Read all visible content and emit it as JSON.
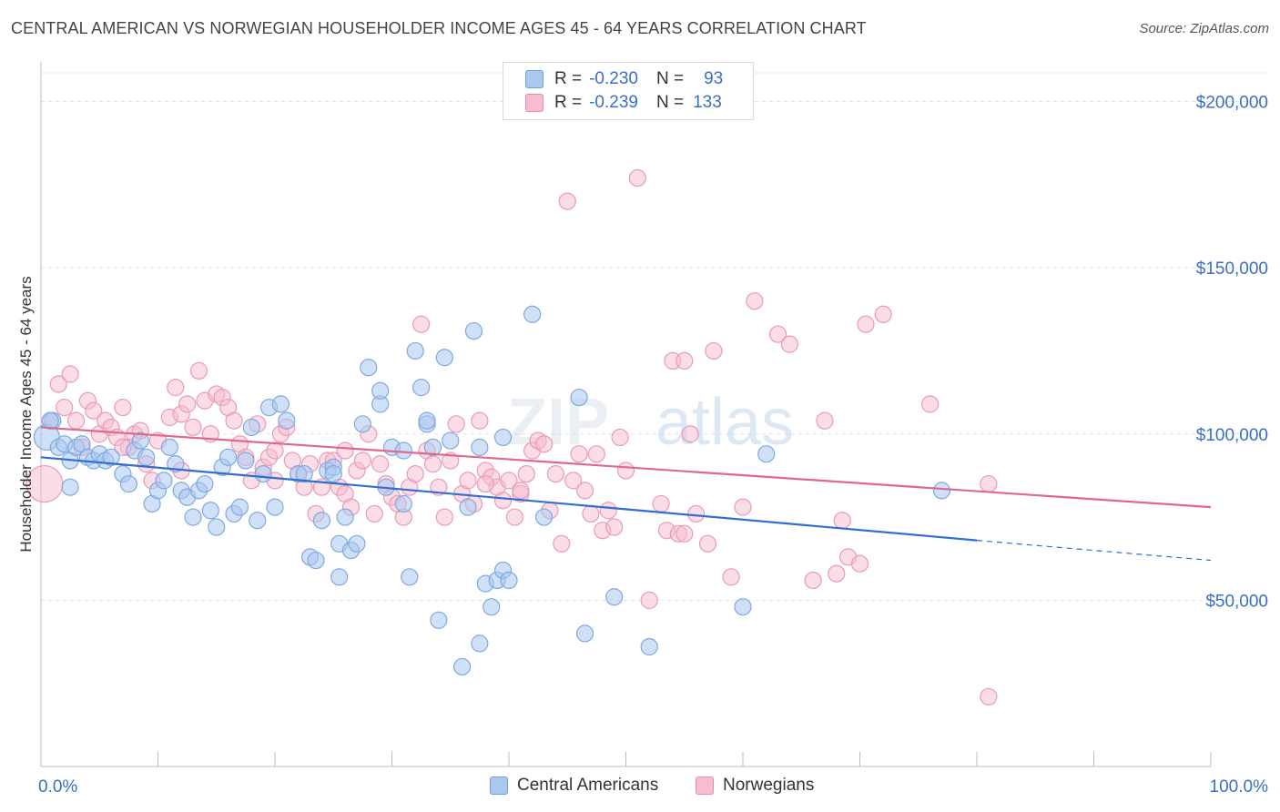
{
  "title": "CENTRAL AMERICAN VS NORWEGIAN HOUSEHOLDER INCOME AGES 45 - 64 YEARS CORRELATION CHART",
  "source": "Source: ZipAtlas.com",
  "watermark": {
    "zip": "ZIP",
    "atlas": "atlas"
  },
  "legend": {
    "rows": [
      {
        "r_label": "R =",
        "r_value": "-0.230",
        "n_label": "N =",
        "n_value": "93",
        "color": "#a9c8f0",
        "border": "#6f9fdc"
      },
      {
        "r_label": "R =",
        "r_value": "-0.239",
        "n_label": "N =",
        "n_value": "133",
        "color": "#f7bcd0",
        "border": "#e88aab"
      }
    ]
  },
  "bottom_legend": [
    {
      "label": "Central Americans",
      "color": "#a9c8f0",
      "border": "#6f9fdc"
    },
    {
      "label": "Norwegians",
      "color": "#f7bcd0",
      "border": "#e88aab"
    }
  ],
  "colors": {
    "blue_line": "#2f6fd0",
    "pink_line": "#e0678f",
    "axis_text": "#3a6fc4",
    "grid": "#dde3ec"
  },
  "chart_data": {
    "type": "scatter",
    "title": "CENTRAL AMERICAN VS NORWEGIAN HOUSEHOLDER INCOME AGES 45 - 64 YEARS CORRELATION CHART",
    "xlabel": "",
    "ylabel": "Householder Income Ages 45 - 64 years",
    "xlim": [
      0,
      100
    ],
    "ylim": [
      0,
      210000
    ],
    "x_tick_labels": [
      "0.0%",
      "100.0%"
    ],
    "y_ticks": [
      50000,
      100000,
      150000,
      200000
    ],
    "y_tick_labels": [
      "$50,000",
      "$100,000",
      "$150,000",
      "$200,000"
    ],
    "grid": true,
    "series": [
      {
        "name": "Central Americans",
        "color": "#a9c8f0",
        "trend": {
          "x": [
            0,
            80
          ],
          "y": [
            93000,
            68000
          ],
          "dashed_to": [
            100,
            62000
          ]
        },
        "points": [
          [
            0.5,
            99000
          ],
          [
            1,
            104000
          ],
          [
            1.5,
            96000
          ],
          [
            2,
            97000
          ],
          [
            2.5,
            92000
          ],
          [
            3,
            96000
          ],
          [
            3.5,
            97000
          ],
          [
            4,
            93000
          ],
          [
            4.5,
            92000
          ],
          [
            5,
            94000
          ],
          [
            5.5,
            92000
          ],
          [
            6,
            93000
          ],
          [
            7,
            88000
          ],
          [
            7.5,
            85000
          ],
          [
            8,
            95000
          ],
          [
            8.5,
            98000
          ],
          [
            9,
            93000
          ],
          [
            9.5,
            79000
          ],
          [
            10,
            83000
          ],
          [
            10.5,
            86000
          ],
          [
            11,
            96000
          ],
          [
            11.5,
            91000
          ],
          [
            12,
            83000
          ],
          [
            12.5,
            81000
          ],
          [
            13,
            75000
          ],
          [
            13.5,
            83000
          ],
          [
            14,
            85000
          ],
          [
            14.5,
            77000
          ],
          [
            15,
            72000
          ],
          [
            15.5,
            90000
          ],
          [
            16,
            93000
          ],
          [
            16.5,
            76000
          ],
          [
            17,
            78000
          ],
          [
            17.5,
            92000
          ],
          [
            18,
            102000
          ],
          [
            18.5,
            74000
          ],
          [
            19,
            88000
          ],
          [
            19.5,
            108000
          ],
          [
            20,
            78000
          ],
          [
            20.5,
            109000
          ],
          [
            21,
            104000
          ],
          [
            22,
            88000
          ],
          [
            22.5,
            88000
          ],
          [
            23,
            63000
          ],
          [
            23.5,
            62000
          ],
          [
            24,
            74000
          ],
          [
            24.5,
            89000
          ],
          [
            25,
            90000
          ],
          [
            25,
            88000
          ],
          [
            25.5,
            67000
          ],
          [
            25.5,
            57000
          ],
          [
            26,
            75000
          ],
          [
            26.5,
            65000
          ],
          [
            27,
            67000
          ],
          [
            27.5,
            103000
          ],
          [
            28,
            120000
          ],
          [
            29,
            109000
          ],
          [
            29,
            113000
          ],
          [
            29.5,
            84000
          ],
          [
            30,
            96000
          ],
          [
            31,
            79000
          ],
          [
            31,
            95000
          ],
          [
            31.5,
            57000
          ],
          [
            32,
            125000
          ],
          [
            32.5,
            114000
          ],
          [
            33,
            103000
          ],
          [
            33.5,
            96000
          ],
          [
            34,
            44000
          ],
          [
            34.5,
            123000
          ],
          [
            35,
            98000
          ],
          [
            36,
            30000
          ],
          [
            36.5,
            78000
          ],
          [
            37,
            131000
          ],
          [
            37.5,
            37000
          ],
          [
            37.5,
            96000
          ],
          [
            38,
            55000
          ],
          [
            38.5,
            48000
          ],
          [
            39,
            56000
          ],
          [
            39.5,
            59000
          ],
          [
            40,
            56000
          ],
          [
            39.5,
            99000
          ],
          [
            42,
            136000
          ],
          [
            43,
            75000
          ],
          [
            46,
            111000
          ],
          [
            46.5,
            40000
          ],
          [
            49,
            51000
          ],
          [
            52,
            36000
          ],
          [
            60,
            48000
          ],
          [
            62,
            94000
          ],
          [
            77,
            83000
          ],
          [
            0.8,
            104000
          ],
          [
            2.5,
            84000
          ],
          [
            33,
            104000
          ]
        ]
      },
      {
        "name": "Norwegians",
        "color": "#f7bcd0",
        "trend": {
          "x": [
            0,
            100
          ],
          "y": [
            102000,
            78000
          ]
        },
        "points": [
          [
            0.3,
            85000
          ],
          [
            0.8,
            104000
          ],
          [
            1.5,
            115000
          ],
          [
            2,
            108000
          ],
          [
            2.5,
            118000
          ],
          [
            3,
            104000
          ],
          [
            3.5,
            96000
          ],
          [
            4,
            110000
          ],
          [
            4.5,
            107000
          ],
          [
            5,
            100000
          ],
          [
            5.5,
            104000
          ],
          [
            6,
            102000
          ],
          [
            6.5,
            99000
          ],
          [
            7,
            108000
          ],
          [
            7.5,
            96000
          ],
          [
            8,
            100000
          ],
          [
            8.5,
            101000
          ],
          [
            9,
            91000
          ],
          [
            9.5,
            86000
          ],
          [
            10,
            98000
          ],
          [
            11,
            105000
          ],
          [
            11.5,
            114000
          ],
          [
            12,
            106000
          ],
          [
            12.5,
            109000
          ],
          [
            13,
            102000
          ],
          [
            13.5,
            119000
          ],
          [
            14,
            110000
          ],
          [
            14.5,
            100000
          ],
          [
            15,
            112000
          ],
          [
            15.5,
            111000
          ],
          [
            16,
            108000
          ],
          [
            16.5,
            104000
          ],
          [
            17,
            97000
          ],
          [
            17.5,
            93000
          ],
          [
            18,
            86000
          ],
          [
            18.5,
            103000
          ],
          [
            19,
            90000
          ],
          [
            19.5,
            93000
          ],
          [
            20,
            86000
          ],
          [
            20.5,
            100000
          ],
          [
            21,
            102000
          ],
          [
            21.5,
            92000
          ],
          [
            22,
            88000
          ],
          [
            22.5,
            84000
          ],
          [
            23,
            91000
          ],
          [
            23.5,
            76000
          ],
          [
            24,
            84000
          ],
          [
            24.5,
            92000
          ],
          [
            25,
            92000
          ],
          [
            25.5,
            84000
          ],
          [
            26,
            82000
          ],
          [
            26.5,
            78000
          ],
          [
            27,
            89000
          ],
          [
            27.5,
            92000
          ],
          [
            28,
            100000
          ],
          [
            28.5,
            76000
          ],
          [
            29,
            91000
          ],
          [
            29.5,
            85000
          ],
          [
            30,
            81000
          ],
          [
            30.5,
            79000
          ],
          [
            31,
            75000
          ],
          [
            31.5,
            84000
          ],
          [
            32,
            88000
          ],
          [
            32.5,
            133000
          ],
          [
            33,
            95000
          ],
          [
            33.5,
            91000
          ],
          [
            34,
            84000
          ],
          [
            34.5,
            75000
          ],
          [
            35,
            92000
          ],
          [
            35.5,
            103000
          ],
          [
            36,
            82000
          ],
          [
            36.5,
            86000
          ],
          [
            37,
            79000
          ],
          [
            37.5,
            104000
          ],
          [
            38,
            89000
          ],
          [
            38.5,
            87000
          ],
          [
            39,
            84000
          ],
          [
            39.5,
            80000
          ],
          [
            40,
            86000
          ],
          [
            40.5,
            75000
          ],
          [
            41,
            82000
          ],
          [
            41.5,
            88000
          ],
          [
            42,
            95000
          ],
          [
            42.5,
            98000
          ],
          [
            43,
            97000
          ],
          [
            43.5,
            77000
          ],
          [
            44,
            88000
          ],
          [
            44.5,
            67000
          ],
          [
            45,
            170000
          ],
          [
            45.5,
            86000
          ],
          [
            46,
            94000
          ],
          [
            46.5,
            83000
          ],
          [
            47,
            76000
          ],
          [
            47.5,
            94000
          ],
          [
            48,
            71000
          ],
          [
            48.5,
            77000
          ],
          [
            49,
            72000
          ],
          [
            49.5,
            99000
          ],
          [
            50,
            89000
          ],
          [
            51,
            177000
          ],
          [
            52,
            50000
          ],
          [
            53,
            79000
          ],
          [
            53.5,
            71000
          ],
          [
            54,
            122000
          ],
          [
            54.5,
            70000
          ],
          [
            55,
            122000
          ],
          [
            55.5,
            100000
          ],
          [
            56,
            76000
          ],
          [
            57,
            67000
          ],
          [
            57.5,
            125000
          ],
          [
            59,
            57000
          ],
          [
            60,
            78000
          ],
          [
            61,
            140000
          ],
          [
            63,
            130000
          ],
          [
            64,
            127000
          ],
          [
            66,
            56000
          ],
          [
            67,
            104000
          ],
          [
            68,
            58000
          ],
          [
            68.5,
            74000
          ],
          [
            69,
            63000
          ],
          [
            70,
            61000
          ],
          [
            70.5,
            133000
          ],
          [
            72,
            136000
          ],
          [
            76,
            109000
          ],
          [
            81,
            21000
          ],
          [
            81,
            85000
          ],
          [
            7,
            96000
          ],
          [
            12,
            89000
          ],
          [
            20,
            95000
          ],
          [
            26,
            95000
          ],
          [
            38,
            85000
          ],
          [
            41,
            83000
          ],
          [
            55,
            70000
          ]
        ]
      }
    ]
  }
}
